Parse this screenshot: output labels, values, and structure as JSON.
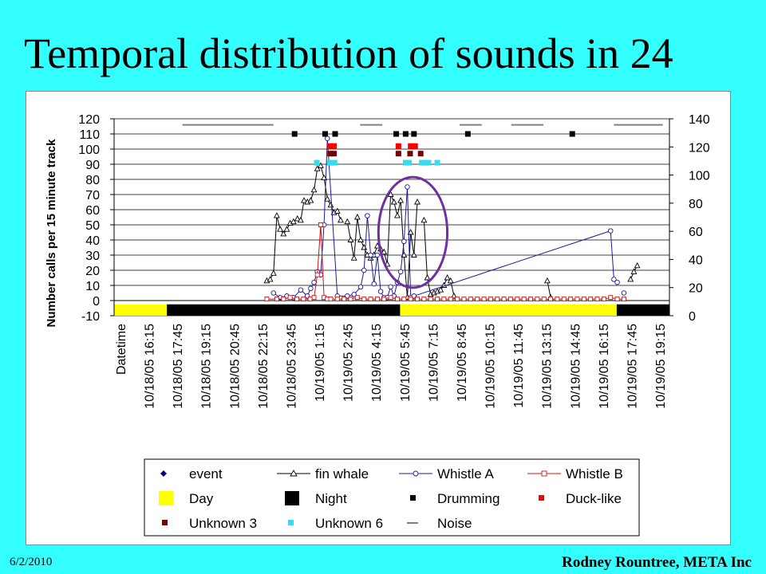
{
  "slide": {
    "title": "Temporal distribution of sounds in 24",
    "date": "6/2/2010",
    "author": "Rodney Rountree, META Inc"
  },
  "chart_data": {
    "type": "line",
    "ylabel": "Number calls per 15 minute track",
    "ylim": [
      -10,
      120
    ],
    "yticks": [
      -10,
      0,
      10,
      20,
      30,
      40,
      50,
      60,
      70,
      80,
      90,
      100,
      110,
      120
    ],
    "y2lim": [
      0,
      140
    ],
    "y2ticks": [
      0,
      20,
      40,
      60,
      80,
      100,
      120,
      140
    ],
    "xrange": [
      0,
      100
    ],
    "xticks": [
      "Datetime",
      "10/18/05 16:15",
      "10/18/05 17:45",
      "10/18/05 19:15",
      "10/18/05 20:45",
      "10/18/05 22:15",
      "10/18/05 23:45",
      "10/19/05 1:15",
      "10/19/05 2:45",
      "10/19/05 4:15",
      "10/19/05 5:45",
      "10/19/05 7:15",
      "10/19/05 8:45",
      "10/19/05 10:15",
      "10/19/05 11:45",
      "10/19/05 13:15",
      "10/19/05 14:45",
      "10/19/05 16:15",
      "10/19/05 17:45",
      "10/19/05 19:15"
    ],
    "grid": true,
    "legend_position": "bottom",
    "colors": {
      "fin": "#000000",
      "whistleA": "#1a1aa0",
      "whistleB": "#d01010",
      "day": "#ffff00",
      "night": "#000000",
      "drum": "#000000",
      "duck": "#ff0000",
      "unk3": "#7a0000",
      "unk6": "#33ddee",
      "noise": "#808080",
      "circle": "#7030a0",
      "event": "#000080"
    },
    "legend": [
      {
        "label": "event",
        "key": "event",
        "marker": "diamond"
      },
      {
        "label": "fin whale",
        "key": "fin",
        "marker": "triangle-line"
      },
      {
        "label": "Whistle A",
        "key": "whistleA",
        "marker": "circle-line"
      },
      {
        "label": "Whistle B",
        "key": "whistleB",
        "marker": "square-line"
      },
      {
        "label": "Day",
        "key": "day",
        "marker": "bigsquare"
      },
      {
        "label": "Night",
        "key": "night",
        "marker": "bigsquare"
      },
      {
        "label": "Drumming",
        "key": "drum",
        "marker": "square"
      },
      {
        "label": "Duck-like",
        "key": "duck",
        "marker": "square"
      },
      {
        "label": "Unknown 3",
        "key": "unk3",
        "marker": "square"
      },
      {
        "label": "Unknown 6",
        "key": "unk6",
        "marker": "square"
      },
      {
        "label": "Noise",
        "key": "noise",
        "marker": "dash"
      }
    ],
    "day_night_bar": [
      {
        "kind": "day",
        "from": 0,
        "to": 9.5
      },
      {
        "kind": "night",
        "from": 9.5,
        "to": 51.5
      },
      {
        "kind": "day",
        "from": 51.5,
        "to": 90.5
      },
      {
        "kind": "night",
        "from": 90.5,
        "to": 100
      }
    ],
    "series": [
      {
        "name": "fin whale",
        "key": "fin",
        "axis": "left",
        "marker": "triangle",
        "x": [
          27.5,
          28.1,
          28.7,
          29.3,
          29.9,
          30.5,
          31.1,
          31.7,
          32.3,
          33.0,
          33.6,
          34.2,
          34.8,
          35.4,
          36.0,
          36.6,
          37.2,
          37.8,
          38.4,
          39.0,
          39.6,
          40.2,
          40.8,
          41.4,
          42.0,
          42.6,
          43.2,
          43.8,
          44.4,
          45.0,
          45.6,
          46.2,
          46.8,
          47.4,
          48.0,
          48.6,
          49.2,
          49.8,
          50.4,
          51.0,
          51.6,
          52.2,
          52.8,
          53.4,
          54.0,
          54.6,
          55.2,
          55.8,
          56.4,
          57.0,
          57.6,
          58.2,
          58.8,
          59.4,
          60.0,
          60.6,
          61.2,
          61.8,
          62.4,
          63.0,
          63.6,
          64.2,
          64.8,
          65.4,
          66.0,
          66.6,
          67.2,
          67.8,
          68.4,
          69.0,
          69.6,
          70.2,
          70.8,
          71.4,
          72.0,
          72.6,
          73.2,
          73.8,
          74.4,
          75.0,
          75.6,
          76.2,
          76.8,
          77.4,
          78.0,
          78.6,
          79.2,
          79.8,
          80.4,
          81.0,
          81.6,
          82.2,
          82.8,
          83.4,
          84.0,
          84.6,
          85.2,
          85.8,
          86.4,
          87.0,
          87.6,
          88.2,
          88.8,
          89.4,
          90.0,
          90.6,
          91.2,
          91.8,
          92.4,
          93.0,
          93.6,
          94.2,
          94.8
        ],
        "y": [
          13,
          14,
          18,
          56,
          47,
          44,
          47,
          51,
          52,
          54,
          53,
          66,
          65,
          66,
          73,
          87,
          89,
          81,
          67,
          63,
          58,
          59,
          53,
          null,
          52,
          40,
          28,
          55,
          40,
          35,
          30,
          28,
          30,
          36,
          34,
          32,
          24,
          70,
          65,
          56,
          66,
          30,
          2,
          45,
          30,
          65,
          null,
          53,
          15,
          4,
          5,
          6,
          7,
          10,
          15,
          13,
          3,
          null,
          null,
          null,
          null,
          null,
          null,
          null,
          null,
          null,
          null,
          null,
          null,
          null,
          null,
          null,
          null,
          null,
          null,
          null,
          null,
          null,
          null,
          null,
          null,
          null,
          null,
          null,
          13,
          2,
          null,
          null,
          null,
          null,
          null,
          null,
          null,
          null,
          null,
          null,
          null,
          null,
          null,
          null,
          null,
          null,
          null,
          null,
          null,
          null,
          null,
          null,
          null,
          14,
          19,
          23,
          null
        ]
      },
      {
        "name": "Whistle A",
        "key": "whistleA",
        "axis": "left",
        "marker": "circle",
        "x": [
          28.7,
          29.9,
          31.1,
          32.3,
          33.6,
          34.8,
          35.4,
          36.0,
          36.6,
          37.2,
          37.8,
          38.4,
          40.2,
          42.0,
          43.2,
          44.4,
          45.0,
          45.6,
          46.2,
          46.8,
          47.4,
          48.0,
          48.6,
          49.2,
          49.8,
          50.4,
          51.0,
          51.6,
          52.2,
          52.8,
          53.4,
          54.0,
          89.4,
          90.0,
          90.6,
          91.2,
          91.8
        ],
        "y": [
          5,
          2,
          3,
          2,
          7,
          3,
          8,
          12,
          19,
          17,
          50,
          107,
          3,
          3,
          4,
          9,
          20,
          56,
          30,
          11,
          30,
          6,
          2,
          2,
          9,
          3,
          12,
          19,
          39,
          75,
          2,
          3,
          46,
          14,
          12,
          null,
          5
        ]
      },
      {
        "name": "Whistle B",
        "key": "whistleB",
        "axis": "left",
        "marker": "square",
        "x": [
          27.5,
          29.3,
          30.5,
          31.7,
          32.9,
          34.1,
          35.3,
          36.0,
          36.6,
          37.2,
          37.8,
          38.4,
          39.0,
          40.2,
          41.4,
          42.6,
          43.8,
          45.0,
          46.2,
          47.4,
          48.6,
          49.8,
          51.0,
          52.2,
          53.4,
          54.6,
          55.8,
          57.0,
          58.2,
          59.4,
          60.6,
          61.8,
          63.0,
          64.2,
          65.4,
          66.6,
          67.8,
          69.0,
          70.2,
          71.4,
          72.6,
          73.8,
          75.0,
          76.2,
          77.4,
          78.6,
          79.8,
          81.0,
          82.2,
          83.4,
          84.6,
          85.8,
          87.0,
          88.2,
          89.4,
          90.6,
          91.8
        ],
        "y": [
          1,
          1,
          1,
          2,
          1,
          1,
          1,
          2,
          17,
          50,
          2,
          1,
          1,
          1,
          1,
          1,
          2,
          1,
          1,
          1,
          1,
          2,
          1,
          1,
          1,
          1,
          1,
          1,
          1,
          1,
          1,
          1,
          1,
          1,
          1,
          1,
          1,
          1,
          1,
          1,
          1,
          1,
          1,
          1,
          1,
          1,
          1,
          1,
          1,
          1,
          1,
          1,
          1,
          1,
          2,
          1,
          1
        ]
      }
    ],
    "events": [
      {
        "type": "drumming",
        "key": "drum",
        "y": 110,
        "x": [
          32.5,
          38.0,
          39.8,
          50.8,
          52.5,
          54.0,
          63.7,
          82.5
        ]
      },
      {
        "type": "duck-like",
        "key": "duck",
        "y": 102,
        "x": [
          38.9,
          39.6,
          51.2,
          53.4,
          54.2
        ]
      },
      {
        "type": "unknown 3",
        "key": "unk3",
        "y": 97,
        "x": [
          38.9,
          39.6,
          51.2,
          53.3,
          55.2
        ]
      },
      {
        "type": "unknown 6",
        "key": "unk6",
        "y": 91,
        "x": [
          36.5,
          38.8,
          39.7,
          52.5,
          53.1,
          55.4,
          56.0,
          56.6,
          58.2
        ]
      },
      {
        "type": "noise",
        "key": "noise",
        "y": 116,
        "segments": [
          [
            12.3,
            28.7
          ],
          [
            44.3,
            48.3
          ],
          [
            62.2,
            66.2
          ],
          [
            71.5,
            77.3
          ],
          [
            90.0,
            98.8
          ]
        ]
      }
    ],
    "highlight": {
      "shape": "ellipse",
      "cx": 53.8,
      "cy": 45,
      "rx": 6.2,
      "ry": 73
    }
  }
}
